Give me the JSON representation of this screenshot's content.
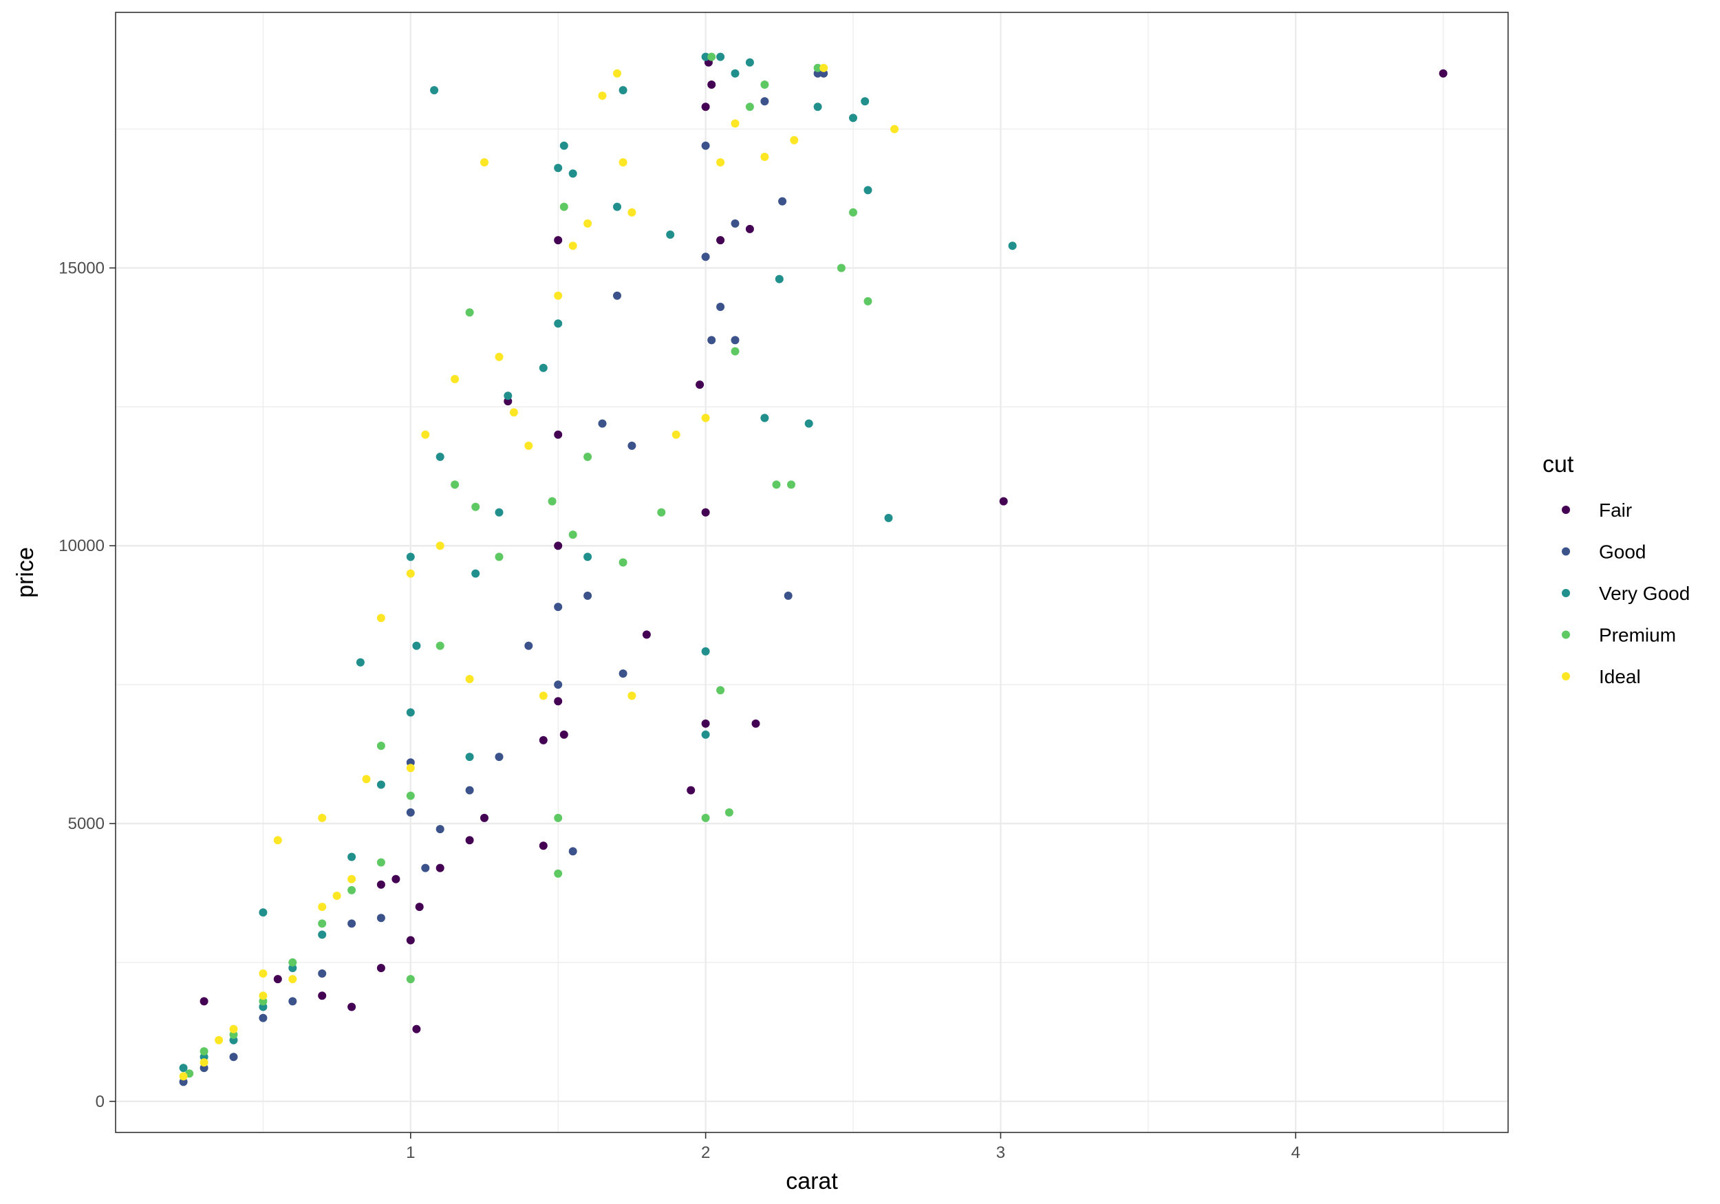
{
  "chart_data": {
    "type": "scatter",
    "title": "",
    "xlabel": "carat",
    "ylabel": "price",
    "xlim": [
      0.0,
      4.72
    ],
    "ylim": [
      -560,
      19600
    ],
    "x_ticks": [
      1,
      2,
      3,
      4
    ],
    "x_tick_labels": [
      "1",
      "2",
      "3",
      "4"
    ],
    "x_minor_ticks": [
      0.5,
      1.5,
      2.5,
      3.5,
      4.5
    ],
    "y_ticks": [
      0,
      5000,
      10000,
      15000
    ],
    "y_tick_labels": [
      "0",
      "5000",
      "10000",
      "15000"
    ],
    "y_minor_ticks": [
      2500,
      7500,
      12500,
      17500
    ],
    "grid": true,
    "legend": {
      "title": "cut",
      "position": "right"
    },
    "series": [
      {
        "name": "Fair",
        "color": "#440154",
        "points": [
          [
            0.3,
            1800
          ],
          [
            0.55,
            2200
          ],
          [
            0.7,
            1900
          ],
          [
            0.8,
            1700
          ],
          [
            0.9,
            2400
          ],
          [
            0.9,
            3900
          ],
          [
            0.95,
            4000
          ],
          [
            1.0,
            2900
          ],
          [
            1.02,
            1300
          ],
          [
            1.03,
            3500
          ],
          [
            1.1,
            4200
          ],
          [
            1.2,
            4700
          ],
          [
            1.25,
            5100
          ],
          [
            1.33,
            12600
          ],
          [
            1.45,
            6500
          ],
          [
            1.5,
            7200
          ],
          [
            1.5,
            15500
          ],
          [
            1.5,
            10000
          ],
          [
            1.5,
            12000
          ],
          [
            1.52,
            6600
          ],
          [
            1.45,
            4600
          ],
          [
            1.8,
            8400
          ],
          [
            1.95,
            5600
          ],
          [
            1.98,
            12900
          ],
          [
            2.0,
            10600
          ],
          [
            2.0,
            6800
          ],
          [
            2.0,
            17900
          ],
          [
            2.01,
            18700
          ],
          [
            2.02,
            18300
          ],
          [
            2.05,
            15500
          ],
          [
            2.15,
            15700
          ],
          [
            2.17,
            6800
          ],
          [
            3.01,
            10800
          ],
          [
            4.5,
            18500
          ]
        ]
      },
      {
        "name": "Good",
        "color": "#3b528b",
        "points": [
          [
            0.23,
            350
          ],
          [
            0.3,
            600
          ],
          [
            0.4,
            800
          ],
          [
            0.5,
            1500
          ],
          [
            0.6,
            1800
          ],
          [
            0.7,
            2300
          ],
          [
            0.8,
            3200
          ],
          [
            0.9,
            3300
          ],
          [
            1.0,
            5200
          ],
          [
            1.0,
            6100
          ],
          [
            1.05,
            4200
          ],
          [
            1.1,
            4900
          ],
          [
            1.2,
            5600
          ],
          [
            1.3,
            6200
          ],
          [
            1.4,
            8200
          ],
          [
            1.5,
            8900
          ],
          [
            1.5,
            7500
          ],
          [
            1.55,
            4500
          ],
          [
            1.6,
            9100
          ],
          [
            1.65,
            12200
          ],
          [
            1.72,
            7700
          ],
          [
            1.7,
            14500
          ],
          [
            1.75,
            11800
          ],
          [
            2.0,
            15200
          ],
          [
            2.0,
            17200
          ],
          [
            2.02,
            13700
          ],
          [
            2.1,
            15800
          ],
          [
            2.1,
            13700
          ],
          [
            2.2,
            18000
          ],
          [
            2.26,
            16200
          ],
          [
            2.28,
            9100
          ],
          [
            2.38,
            18500
          ],
          [
            2.4,
            18500
          ],
          [
            2.05,
            14300
          ]
        ]
      },
      {
        "name": "Very Good",
        "color": "#21908c",
        "points": [
          [
            0.23,
            600
          ],
          [
            0.3,
            800
          ],
          [
            0.4,
            1100
          ],
          [
            0.5,
            1700
          ],
          [
            0.5,
            3400
          ],
          [
            0.6,
            2400
          ],
          [
            0.7,
            3000
          ],
          [
            0.8,
            4400
          ],
          [
            0.83,
            7900
          ],
          [
            0.9,
            5700
          ],
          [
            1.0,
            7000
          ],
          [
            1.0,
            9800
          ],
          [
            1.02,
            8200
          ],
          [
            1.08,
            18200
          ],
          [
            1.1,
            11600
          ],
          [
            1.2,
            6200
          ],
          [
            1.22,
            9500
          ],
          [
            1.3,
            10600
          ],
          [
            1.33,
            12700
          ],
          [
            1.45,
            13200
          ],
          [
            1.5,
            16800
          ],
          [
            1.5,
            14000
          ],
          [
            1.52,
            17200
          ],
          [
            1.55,
            16700
          ],
          [
            1.6,
            9800
          ],
          [
            1.7,
            16100
          ],
          [
            1.72,
            18200
          ],
          [
            1.88,
            15600
          ],
          [
            2.0,
            8100
          ],
          [
            2.0,
            6600
          ],
          [
            2.0,
            18800
          ],
          [
            2.05,
            18800
          ],
          [
            2.1,
            18500
          ],
          [
            2.15,
            18700
          ],
          [
            2.2,
            12300
          ],
          [
            2.25,
            14800
          ],
          [
            2.35,
            12200
          ],
          [
            2.38,
            17900
          ],
          [
            2.5,
            17700
          ],
          [
            2.54,
            18000
          ],
          [
            2.55,
            16400
          ],
          [
            2.62,
            10500
          ],
          [
            3.04,
            15400
          ]
        ]
      },
      {
        "name": "Premium",
        "color": "#5ec962",
        "points": [
          [
            0.25,
            500
          ],
          [
            0.3,
            900
          ],
          [
            0.4,
            1200
          ],
          [
            0.5,
            1800
          ],
          [
            0.6,
            2500
          ],
          [
            0.7,
            3200
          ],
          [
            0.8,
            3800
          ],
          [
            0.9,
            4300
          ],
          [
            0.9,
            6400
          ],
          [
            1.0,
            2200
          ],
          [
            1.0,
            5500
          ],
          [
            1.1,
            8200
          ],
          [
            1.15,
            11100
          ],
          [
            1.2,
            14200
          ],
          [
            1.22,
            10700
          ],
          [
            1.3,
            9800
          ],
          [
            1.48,
            10800
          ],
          [
            1.5,
            4100
          ],
          [
            1.5,
            5100
          ],
          [
            1.52,
            16100
          ],
          [
            1.55,
            10200
          ],
          [
            1.6,
            11600
          ],
          [
            1.72,
            9700
          ],
          [
            1.85,
            10600
          ],
          [
            2.0,
            5100
          ],
          [
            2.02,
            18800
          ],
          [
            2.05,
            7400
          ],
          [
            2.08,
            5200
          ],
          [
            2.1,
            13500
          ],
          [
            2.15,
            17900
          ],
          [
            2.2,
            18300
          ],
          [
            2.24,
            11100
          ],
          [
            2.29,
            11100
          ],
          [
            2.46,
            15000
          ],
          [
            2.5,
            16000
          ],
          [
            2.55,
            14400
          ],
          [
            2.38,
            18600
          ]
        ]
      },
      {
        "name": "Ideal",
        "color": "#fde725",
        "points": [
          [
            0.23,
            450
          ],
          [
            0.3,
            700
          ],
          [
            0.35,
            1100
          ],
          [
            0.4,
            1300
          ],
          [
            0.5,
            1900
          ],
          [
            0.5,
            2300
          ],
          [
            0.55,
            4700
          ],
          [
            0.6,
            2200
          ],
          [
            0.7,
            3500
          ],
          [
            0.7,
            5100
          ],
          [
            0.75,
            3700
          ],
          [
            0.8,
            4000
          ],
          [
            0.85,
            5800
          ],
          [
            0.9,
            8700
          ],
          [
            1.0,
            6000
          ],
          [
            1.0,
            9500
          ],
          [
            1.05,
            12000
          ],
          [
            1.1,
            10000
          ],
          [
            1.15,
            13000
          ],
          [
            1.2,
            7600
          ],
          [
            1.25,
            16900
          ],
          [
            1.3,
            13400
          ],
          [
            1.35,
            12400
          ],
          [
            1.4,
            11800
          ],
          [
            1.45,
            7300
          ],
          [
            1.5,
            14500
          ],
          [
            1.55,
            15400
          ],
          [
            1.6,
            15800
          ],
          [
            1.65,
            18100
          ],
          [
            1.7,
            18500
          ],
          [
            1.72,
            16900
          ],
          [
            1.75,
            7300
          ],
          [
            1.75,
            16000
          ],
          [
            1.9,
            12000
          ],
          [
            2.0,
            12300
          ],
          [
            2.05,
            16900
          ],
          [
            2.1,
            17600
          ],
          [
            2.2,
            17000
          ],
          [
            2.3,
            17300
          ],
          [
            2.4,
            18600
          ],
          [
            2.64,
            17500
          ]
        ]
      }
    ]
  }
}
